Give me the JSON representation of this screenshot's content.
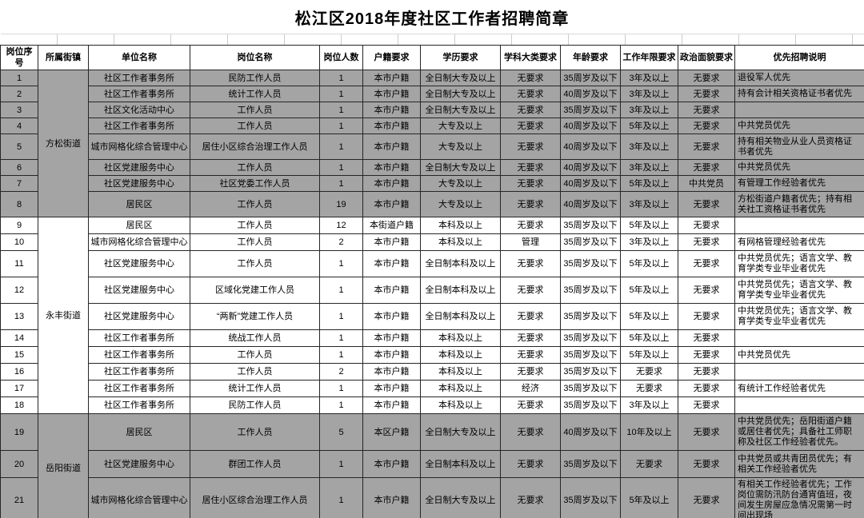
{
  "title": "松江区2018年度社区工作者招聘简章",
  "table": {
    "headers": [
      "岗位序号",
      "所属街镇",
      "单位名称",
      "岗位名称",
      "岗位人数",
      "户籍要求",
      "学历要求",
      "学科大类要求",
      "年龄要求",
      "工作年限要求",
      "政治面貌要求",
      "优先招聘说明"
    ],
    "groups": [
      {
        "street": "方松街道",
        "shaded": true,
        "rows": [
          {
            "no": "1",
            "unit": "社区工作者事务所",
            "position": "民防工作人员",
            "count": "1",
            "hukou": "本市户籍",
            "edu": "全日制大专及以上",
            "major": "无要求",
            "age": "35周岁及以下",
            "years": "3年及以上",
            "political": "无要求",
            "priority": "退役军人优先"
          },
          {
            "no": "2",
            "unit": "社区工作者事务所",
            "position": "统计工作人员",
            "count": "1",
            "hukou": "本市户籍",
            "edu": "全日制大专及以上",
            "major": "无要求",
            "age": "40周岁及以下",
            "years": "3年及以上",
            "political": "无要求",
            "priority": "持有会计相关资格证书者优先"
          },
          {
            "no": "3",
            "unit": "社区文化活动中心",
            "position": "工作人员",
            "count": "1",
            "hukou": "本市户籍",
            "edu": "全日制大专及以上",
            "major": "无要求",
            "age": "35周岁及以下",
            "years": "3年及以上",
            "political": "无要求",
            "priority": ""
          },
          {
            "no": "4",
            "unit": "社区工作者事务所",
            "position": "工作人员",
            "count": "1",
            "hukou": "本市户籍",
            "edu": "大专及以上",
            "major": "无要求",
            "age": "40周岁及以下",
            "years": "5年及以上",
            "political": "无要求",
            "priority": "中共党员优先"
          },
          {
            "no": "5",
            "unit": "城市网格化综合管理中心",
            "position": "居住小区综合治理工作人员",
            "count": "1",
            "hukou": "本市户籍",
            "edu": "大专及以上",
            "major": "无要求",
            "age": "40周岁及以下",
            "years": "3年及以上",
            "political": "无要求",
            "priority": "持有相关物业从业人员资格证书者优先"
          },
          {
            "no": "6",
            "unit": "社区党建服务中心",
            "position": "工作人员",
            "count": "1",
            "hukou": "本市户籍",
            "edu": "全日制大专及以上",
            "major": "无要求",
            "age": "40周岁及以下",
            "years": "3年及以上",
            "political": "无要求",
            "priority": "中共党员优先"
          },
          {
            "no": "7",
            "unit": "社区党建服务中心",
            "position": "社区党委工作人员",
            "count": "1",
            "hukou": "本市户籍",
            "edu": "大专及以上",
            "major": "无要求",
            "age": "40周岁及以下",
            "years": "5年及以上",
            "political": "中共党员",
            "priority": "有管理工作经验者优先"
          },
          {
            "no": "8",
            "unit": "居民区",
            "position": "工作人员",
            "count": "19",
            "hukou": "本市户籍",
            "edu": "大专及以上",
            "major": "无要求",
            "age": "40周岁及以下",
            "years": "3年及以上",
            "political": "无要求",
            "priority": "方松街道户籍者优先；持有相关社工资格证书者优先"
          }
        ]
      },
      {
        "street": "永丰街道",
        "shaded": false,
        "rows": [
          {
            "no": "9",
            "unit": "居民区",
            "position": "工作人员",
            "count": "12",
            "hukou": "本街道户籍",
            "edu": "本科及以上",
            "major": "无要求",
            "age": "35周岁及以下",
            "years": "5年及以上",
            "political": "无要求",
            "priority": ""
          },
          {
            "no": "10",
            "unit": "城市网格化综合管理中心",
            "position": "工作人员",
            "count": "2",
            "hukou": "本市户籍",
            "edu": "本科及以上",
            "major": "管理",
            "age": "35周岁及以下",
            "years": "3年及以上",
            "political": "无要求",
            "priority": "有网格管理经验者优先"
          },
          {
            "no": "11",
            "unit": "社区党建服务中心",
            "position": "工作人员",
            "count": "1",
            "hukou": "本市户籍",
            "edu": "全日制本科及以上",
            "major": "无要求",
            "age": "35周岁及以下",
            "years": "5年及以上",
            "political": "无要求",
            "priority": "中共党员优先；语言文学、教育学类专业毕业者优先"
          },
          {
            "no": "12",
            "unit": "社区党建服务中心",
            "position": "区域化党建工作人员",
            "count": "1",
            "hukou": "本市户籍",
            "edu": "全日制本科及以上",
            "major": "无要求",
            "age": "35周岁及以下",
            "years": "5年及以上",
            "political": "无要求",
            "priority": "中共党员优先；语言文学、教育学类专业毕业者优先"
          },
          {
            "no": "13",
            "unit": "社区党建服务中心",
            "position": "“两新”党建工作人员",
            "count": "1",
            "hukou": "本市户籍",
            "edu": "全日制本科及以上",
            "major": "无要求",
            "age": "35周岁及以下",
            "years": "5年及以上",
            "political": "无要求",
            "priority": "中共党员优先；语言文学、教育学类专业毕业者优先"
          },
          {
            "no": "14",
            "unit": "社区工作者事务所",
            "position": "统战工作人员",
            "count": "1",
            "hukou": "本市户籍",
            "edu": "本科及以上",
            "major": "无要求",
            "age": "35周岁及以下",
            "years": "5年及以上",
            "political": "无要求",
            "priority": ""
          },
          {
            "no": "15",
            "unit": "社区工作者事务所",
            "position": "工作人员",
            "count": "1",
            "hukou": "本市户籍",
            "edu": "本科及以上",
            "major": "无要求",
            "age": "35周岁及以下",
            "years": "5年及以上",
            "political": "无要求",
            "priority": "中共党员优先"
          },
          {
            "no": "16",
            "unit": "社区工作者事务所",
            "position": "工作人员",
            "count": "2",
            "hukou": "本市户籍",
            "edu": "本科及以上",
            "major": "无要求",
            "age": "35周岁及以下",
            "years": "无要求",
            "political": "无要求",
            "priority": ""
          },
          {
            "no": "17",
            "unit": "社区工作者事务所",
            "position": "统计工作人员",
            "count": "1",
            "hukou": "本市户籍",
            "edu": "本科及以上",
            "major": "经济",
            "age": "35周岁及以下",
            "years": "无要求",
            "political": "无要求",
            "priority": "有统计工作经验者优先"
          },
          {
            "no": "18",
            "unit": "社区工作者事务所",
            "position": "民防工作人员",
            "count": "1",
            "hukou": "本市户籍",
            "edu": "本科及以上",
            "major": "无要求",
            "age": "35周岁及以下",
            "years": "3年及以上",
            "political": "无要求",
            "priority": ""
          }
        ]
      },
      {
        "street": "岳阳街道",
        "shaded": true,
        "rows": [
          {
            "no": "19",
            "unit": "居民区",
            "position": "工作人员",
            "count": "5",
            "hukou": "本区户籍",
            "edu": "全日制大专及以上",
            "major": "无要求",
            "age": "40周岁及以下",
            "years": "10年及以上",
            "political": "无要求",
            "priority": "中共党员优先；岳阳街道户籍或居住者优先；具备社工师职称及社区工作经验者优先。"
          },
          {
            "no": "20",
            "unit": "社区党建服务中心",
            "position": "群团工作人员",
            "count": "1",
            "hukou": "本市户籍",
            "edu": "全日制本科及以上",
            "major": "无要求",
            "age": "35周岁及以下",
            "years": "无要求",
            "political": "无要求",
            "priority": "中共党员或共青团员优先；有相关工作经验者优先"
          },
          {
            "no": "21",
            "unit": "城市网格化综合管理中心",
            "position": "居住小区综合治理工作人员",
            "count": "1",
            "hukou": "本市户籍",
            "edu": "全日制大专及以上",
            "major": "无要求",
            "age": "35周岁及以下",
            "years": "5年及以上",
            "political": "无要求",
            "priority": "有相关工作经验者优先；工作岗位需防汛防台通宵值班，夜间发生房屋应急情况需第一时间出现场"
          }
        ]
      }
    ]
  }
}
